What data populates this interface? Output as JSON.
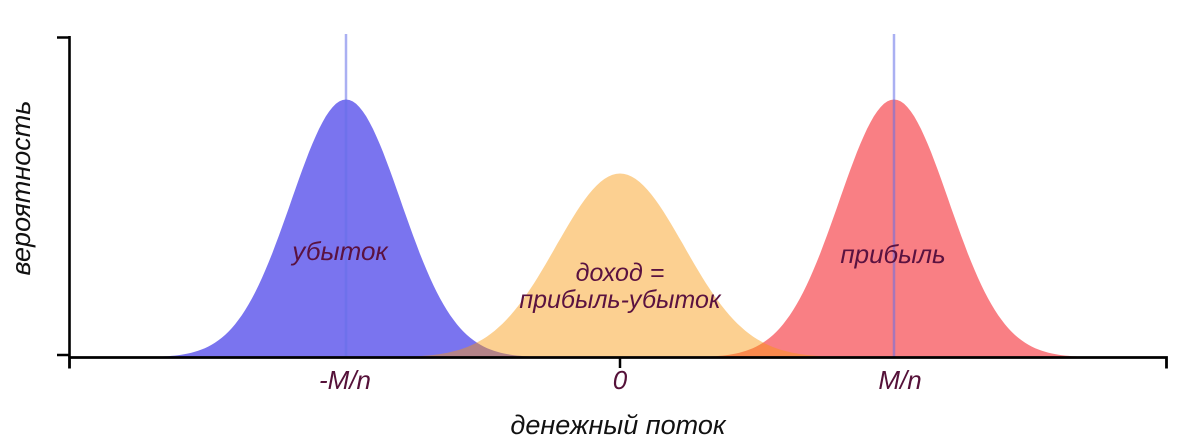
{
  "chart_data": {
    "type": "area",
    "subtype": "overlapping-normal-distributions",
    "title": "",
    "xlabel": "денежный поток",
    "ylabel": "вероятность",
    "grid": false,
    "legend": "none",
    "background": "#ffffff",
    "axis_color": "#000000",
    "marker_line_color": "rgba(100,112,232,0.55)",
    "x_range_u": [
      -2.01,
      2.0
    ],
    "x_ticks": [
      {
        "label": "-M/n",
        "u": -1,
        "has_tick_mark": false
      },
      {
        "label": "0",
        "u": 0,
        "has_tick_mark": true
      },
      {
        "label": "M/n",
        "u": 1,
        "has_tick_mark": false
      }
    ],
    "curves": [
      {
        "name": "loss",
        "label": "убыток",
        "center_u": -1,
        "sigma_u": 0.2,
        "peak_rel": 1.0,
        "fill": "rgba(77,70,233,0.75)",
        "observed_color": "#7C78EE",
        "marker_line": true,
        "z": 1
      },
      {
        "name": "income",
        "label_lines": [
          "доход =",
          "прибыль-убыток"
        ],
        "center_u": 0,
        "sigma_u": 0.233,
        "peak_rel": 0.713,
        "fill": "rgba(248,150,10,0.45)",
        "observed_color": "#FBCE83",
        "marker_line": false,
        "z": 3
      },
      {
        "name": "profit",
        "label": "прибыль",
        "center_u": 1,
        "sigma_u": 0.2,
        "peak_rel": 1.0,
        "fill": "rgba(246,78,84,0.72)",
        "observed_color": "#F87D80",
        "marker_line": true,
        "z": 2
      }
    ],
    "overlap_colors": {
      "loss_income": "#B08A7A",
      "income_profit": "#FB9A44"
    }
  }
}
